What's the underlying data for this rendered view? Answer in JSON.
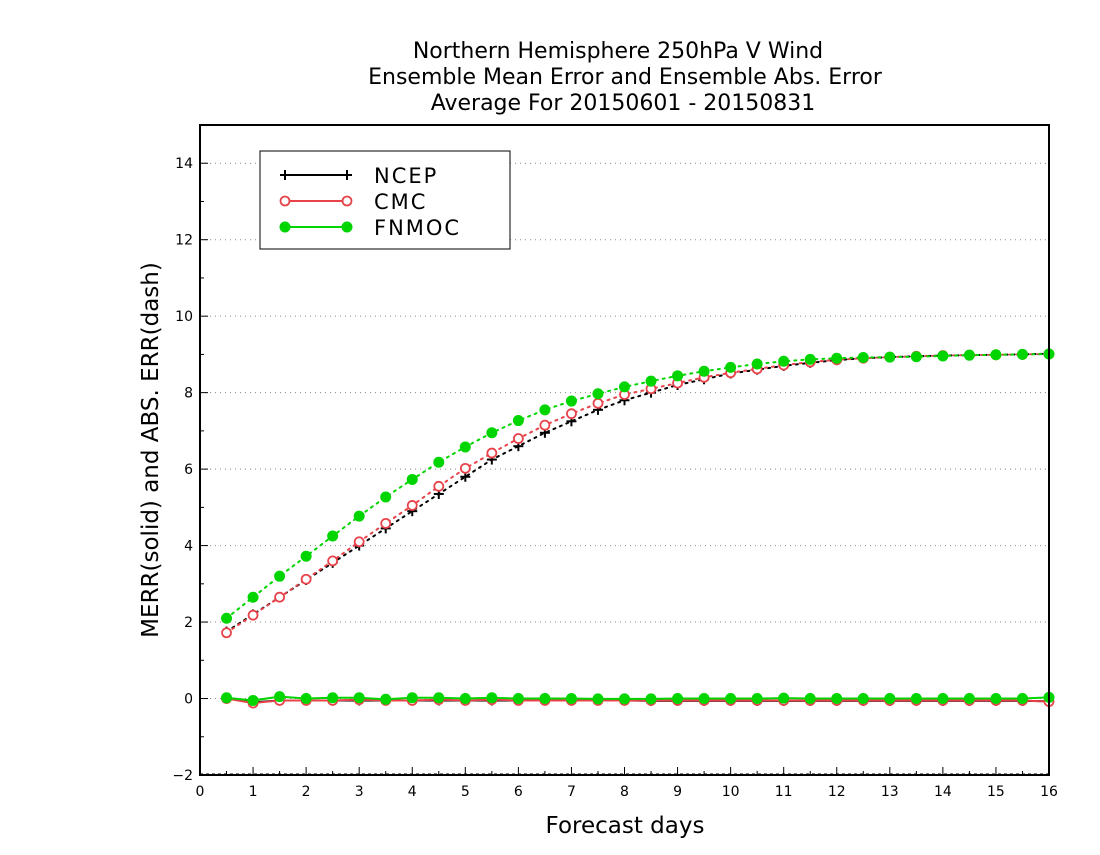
{
  "chart_data": {
    "type": "line",
    "title": [
      "Northern Hemisphere 250hPa V Wind",
      "Ensemble Mean Error and Ensemble Abs. Error",
      "Average For 20150601 - 20150831"
    ],
    "xlabel": "Forecast days",
    "ylabel": "MERR(solid) and ABS. ERR(dash)",
    "xlim": [
      0,
      16
    ],
    "ylim": [
      -2,
      15
    ],
    "xticks": [
      0,
      1,
      2,
      3,
      4,
      5,
      6,
      7,
      8,
      9,
      10,
      11,
      12,
      13,
      14,
      15,
      16
    ],
    "yticks": [
      -2,
      0,
      2,
      4,
      6,
      8,
      10,
      12,
      14
    ],
    "grid": "horizontal dotted",
    "legend_position": "top-left",
    "x": [
      0.5,
      1,
      1.5,
      2,
      2.5,
      3,
      3.5,
      4,
      4.5,
      5,
      5.5,
      6,
      6.5,
      7,
      7.5,
      8,
      8.5,
      9,
      9.5,
      10,
      10.5,
      11,
      11.5,
      12,
      12.5,
      13,
      13.5,
      14,
      14.5,
      15,
      15.5,
      16
    ],
    "series": [
      {
        "name": "NCEP",
        "color": "#000000",
        "marker": "plus",
        "abs_error": [
          1.75,
          2.2,
          2.65,
          3.1,
          3.55,
          4.0,
          4.45,
          4.9,
          5.35,
          5.8,
          6.25,
          6.6,
          6.95,
          7.25,
          7.55,
          7.8,
          8.0,
          8.2,
          8.35,
          8.5,
          8.6,
          8.7,
          8.78,
          8.85,
          8.9,
          8.93,
          8.95,
          8.97,
          8.98,
          8.99,
          9.0,
          9.02
        ],
        "mean_error": [
          0.0,
          -0.1,
          -0.05,
          -0.05,
          -0.05,
          -0.05,
          -0.05,
          -0.05,
          -0.05,
          -0.05,
          -0.05,
          -0.05,
          -0.05,
          -0.05,
          -0.05,
          -0.05,
          -0.06,
          -0.06,
          -0.06,
          -0.06,
          -0.06,
          -0.06,
          -0.06,
          -0.06,
          -0.06,
          -0.06,
          -0.06,
          -0.06,
          -0.06,
          -0.06,
          -0.06,
          -0.07
        ]
      },
      {
        "name": "CMC",
        "color": "#e8434b",
        "marker": "open-circle",
        "abs_error": [
          1.72,
          2.18,
          2.65,
          3.12,
          3.6,
          4.1,
          4.58,
          5.05,
          5.55,
          6.02,
          6.42,
          6.8,
          7.15,
          7.45,
          7.72,
          7.95,
          8.1,
          8.25,
          8.4,
          8.52,
          8.62,
          8.72,
          8.8,
          8.86,
          8.9,
          8.93,
          8.95,
          8.97,
          8.98,
          8.99,
          9.0,
          9.01
        ],
        "mean_error": [
          0.0,
          -0.12,
          -0.05,
          -0.05,
          -0.05,
          -0.03,
          -0.05,
          -0.05,
          -0.03,
          -0.05,
          -0.03,
          -0.05,
          -0.05,
          -0.05,
          -0.05,
          -0.05,
          -0.05,
          -0.05,
          -0.05,
          -0.05,
          -0.05,
          -0.05,
          -0.05,
          -0.05,
          -0.05,
          -0.05,
          -0.05,
          -0.05,
          -0.05,
          -0.05,
          -0.05,
          -0.08
        ]
      },
      {
        "name": "FNMOC",
        "color": "#00d500",
        "marker": "filled-circle",
        "abs_error": [
          2.1,
          2.65,
          3.2,
          3.72,
          4.25,
          4.77,
          5.27,
          5.73,
          6.18,
          6.58,
          6.95,
          7.27,
          7.55,
          7.78,
          7.97,
          8.15,
          8.3,
          8.44,
          8.56,
          8.66,
          8.75,
          8.82,
          8.87,
          8.9,
          8.92,
          8.93,
          8.94,
          8.96,
          8.98,
          8.99,
          9.0,
          9.01
        ],
        "mean_error": [
          0.02,
          -0.05,
          0.05,
          0.0,
          0.02,
          0.02,
          -0.02,
          0.02,
          0.02,
          0.0,
          0.02,
          0.0,
          0.0,
          0.0,
          -0.01,
          -0.01,
          -0.01,
          0.0,
          0.0,
          0.0,
          0.0,
          0.01,
          0.0,
          0.0,
          0.0,
          0.0,
          0.0,
          0.0,
          0.0,
          0.0,
          0.0,
          0.03
        ]
      }
    ]
  }
}
